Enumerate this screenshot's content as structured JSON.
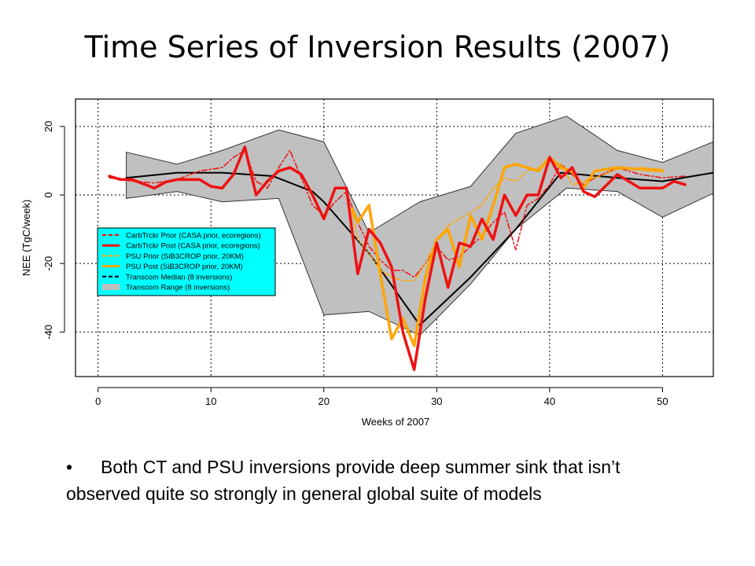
{
  "slide": {
    "title": "Time Series of Inversion Results (2007)",
    "bullet_symbol": "•",
    "bullet_text": "Both CT and PSU inversions provide deep summer sink that isn’t observed quite so strongly in general global suite of models"
  },
  "chart_data": {
    "type": "line",
    "xlabel": "Weeks of 2007",
    "ylabel": "NEE (TgC/week)",
    "xlim": [
      -2,
      54.5
    ],
    "ylim": [
      -53,
      28
    ],
    "xticks": [
      0,
      10,
      20,
      30,
      40,
      50
    ],
    "yticks": [
      -40,
      -20,
      0,
      20
    ],
    "grid": true,
    "legend_position": "middle-left",
    "colors": {
      "ct_red": "#ee1111",
      "psu_orange": "#ffa500",
      "median": "#000000",
      "range_fill": "#c0c0c0",
      "legend_bg": "#00ffff"
    },
    "legend": [
      {
        "label": "CarbTrckr Prior (CASA prior, ecoregions)",
        "color": "#ee1111",
        "style": "dashed"
      },
      {
        "label": "CarbTrckr Post (CASA prior, ecoregions)",
        "color": "#ee1111",
        "style": "solid"
      },
      {
        "label": "PSU Prior (SiB3CROP prior, 20KM)",
        "color": "#ffa500",
        "style": "dashed"
      },
      {
        "label": "PSU Post (SiB3CROP prior, 20KM)",
        "color": "#ffa500",
        "style": "solid"
      },
      {
        "label": "Transcom Median (8 inversions)",
        "color": "#000000",
        "style": "dashed"
      },
      {
        "label": "Transcom Range (8 inversions)",
        "color": "#c0c0c0",
        "style": "fill"
      }
    ],
    "range": {
      "x": [
        2.5,
        7,
        11,
        16,
        20,
        24,
        28.5,
        33,
        37,
        41.5,
        46,
        50,
        54.5
      ],
      "upper": [
        12.5,
        9,
        13,
        19,
        15.5,
        -11,
        -2,
        2.5,
        18,
        23,
        13,
        9.5,
        15.5
      ],
      "lower": [
        -1,
        1,
        -2,
        -1,
        -35,
        -34,
        -41,
        -26,
        -10,
        2,
        1,
        -6.5,
        0.5
      ]
    },
    "series": [
      {
        "name": "Transcom Median (8 inversions)",
        "style": "solid",
        "width": 2,
        "x": [
          2.5,
          7,
          11,
          15.5,
          19,
          20,
          24,
          28.5,
          33,
          37,
          41,
          46,
          50,
          54.5
        ],
        "y": [
          5,
          6.5,
          6.5,
          5.5,
          1,
          -2,
          -17,
          -38,
          -24,
          -10,
          6.5,
          5,
          4,
          6.5
        ]
      },
      {
        "name": "CarbTrckr Prior (CASA prior, ecoregions)",
        "style": "dashdot",
        "width": 1.5,
        "x": [
          1,
          3,
          5,
          7,
          9,
          11,
          12,
          13,
          14,
          15,
          16,
          17,
          18,
          19,
          20,
          21,
          22,
          23,
          24,
          25,
          26,
          27,
          28,
          29,
          30,
          31,
          32,
          33,
          34,
          35,
          36,
          37,
          38,
          39,
          40,
          41,
          42,
          43,
          44,
          46,
          48,
          50,
          52
        ],
        "y": [
          5,
          4,
          3.5,
          4.5,
          7,
          8,
          11,
          13,
          4,
          2,
          8,
          13,
          5,
          -3,
          -6,
          -2,
          1,
          -8,
          -15,
          -19,
          -22,
          -22,
          -24,
          -20,
          -15,
          -19,
          -18,
          -15,
          -12,
          -8,
          -5,
          -16,
          -3,
          -1,
          3,
          9,
          6,
          3,
          5,
          8,
          6,
          5,
          5.5
        ]
      },
      {
        "name": "CarbTrckr Post (CASA prior, ecoregions)",
        "style": "solid",
        "width": 3.5,
        "x": [
          1,
          2,
          3,
          5,
          6,
          7,
          8,
          9,
          10,
          11,
          12,
          13,
          14,
          15,
          16,
          17,
          18,
          19,
          20,
          21,
          22,
          23,
          24,
          25,
          26,
          27,
          28,
          29,
          30,
          31,
          32,
          33,
          34,
          35,
          36,
          37,
          38,
          39,
          40,
          41,
          42,
          43,
          44,
          46,
          48,
          50,
          51,
          52
        ],
        "y": [
          5.5,
          4.5,
          4.5,
          2,
          3.8,
          4.5,
          4.5,
          4.5,
          2.5,
          2,
          6,
          14,
          0,
          4,
          7,
          8,
          6,
          0,
          -7,
          2,
          2,
          -23,
          -10,
          -14,
          -21,
          -40,
          -51,
          -30,
          -14,
          -27,
          -14,
          -15,
          -7,
          -13,
          0,
          -6,
          0,
          0,
          11,
          5,
          8,
          1,
          -0.5,
          6,
          2,
          2,
          4,
          3
        ]
      },
      {
        "name": "PSU Prior (SiB3CROP prior, 20KM)",
        "style": "dashdot",
        "width": 1.5,
        "x": [
          22.5,
          23,
          24,
          25,
          26,
          27,
          28,
          29,
          30,
          31,
          32,
          33,
          34,
          35,
          36,
          37,
          38,
          39,
          40,
          41,
          42,
          43,
          44,
          46,
          48,
          50
        ],
        "y": [
          -5,
          -13,
          -17,
          -22,
          -24,
          -25,
          -25,
          -20,
          -13,
          -9,
          -7,
          -5,
          -3,
          2,
          5,
          4,
          7,
          8,
          10,
          9,
          3,
          4,
          5,
          7.5,
          8,
          7.5
        ]
      },
      {
        "name": "PSU Post (SiB3CROP prior, 20KM)",
        "style": "solid",
        "width": 3.5,
        "x": [
          22.5,
          23,
          24,
          25,
          26,
          27,
          28,
          29,
          30,
          31,
          32,
          33,
          34,
          35,
          36,
          37,
          38,
          39,
          40,
          41,
          42,
          43,
          44,
          46,
          48,
          50
        ],
        "y": [
          -4,
          -8,
          -3,
          -23,
          -42,
          -36,
          -44,
          -24,
          -13,
          -10,
          -21,
          -6,
          -13,
          -3,
          8,
          9,
          8,
          7,
          11,
          8,
          7,
          2,
          7,
          8,
          7.5,
          7
        ]
      }
    ]
  }
}
